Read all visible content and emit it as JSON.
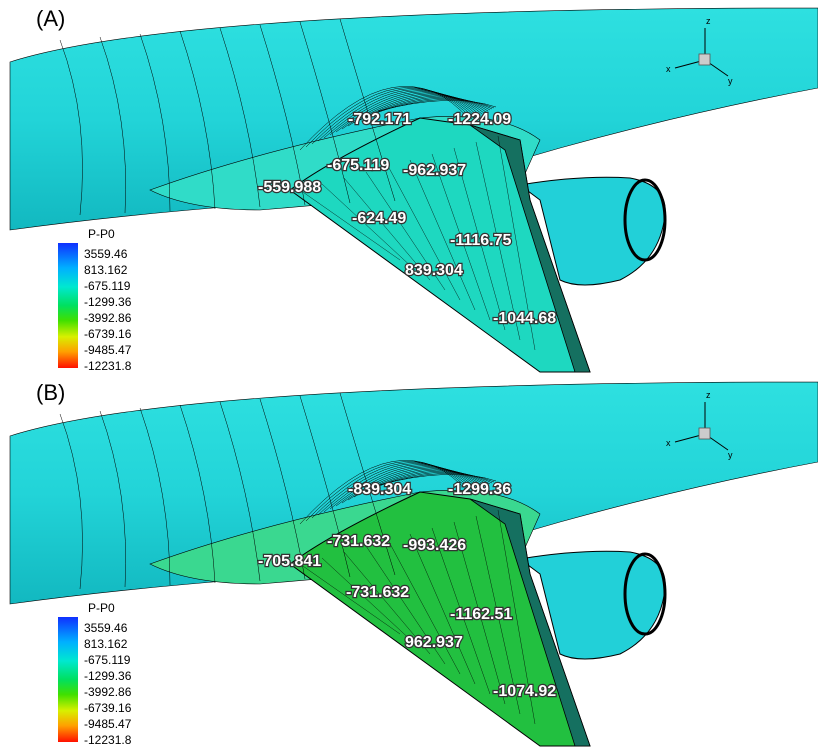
{
  "panels": [
    {
      "label": "(A)",
      "legend": {
        "title": "P-P0",
        "levels": [
          "3559.46",
          "813.162",
          "-675.119",
          "-1299.36",
          "-3992.86",
          "-6739.16",
          "-9485.47",
          "-12231.8"
        ]
      },
      "axes": [
        "z",
        "x",
        "y"
      ],
      "annotations": [
        "-792.171",
        "-1224.09",
        "-675.119",
        "-962.937",
        "-559.988",
        "-624.49",
        "-1116.75",
        "839.304",
        "-1044.68"
      ]
    },
    {
      "label": "(B)",
      "legend": {
        "title": "P-P0",
        "levels": [
          "3559.46",
          "813.162",
          "-675.119",
          "-1299.36",
          "-3992.86",
          "-6739.16",
          "-9485.47",
          "-12231.8"
        ]
      },
      "axes": [
        "z",
        "x",
        "y"
      ],
      "annotations": [
        "-839.304",
        "-1299.36",
        "-731.632",
        "-993.426",
        "-705.841",
        "-731.632",
        "-1162.51",
        "962.937",
        "-1074.92"
      ]
    }
  ]
}
